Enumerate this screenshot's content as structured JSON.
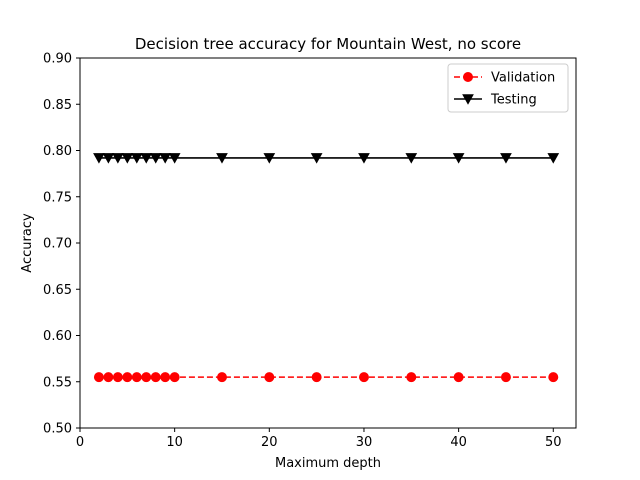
{
  "chart_data": {
    "type": "line",
    "title": "Decision tree accuracy for Mountain West, no score",
    "xlabel": "Maximum depth",
    "ylabel": "Accuracy",
    "xlim": [
      0,
      52.4
    ],
    "ylim": [
      0.5,
      0.9
    ],
    "xticks": [
      0,
      10,
      20,
      30,
      40,
      50
    ],
    "yticks": [
      0.5,
      0.55,
      0.6,
      0.65,
      0.7,
      0.75,
      0.8,
      0.85,
      0.9
    ],
    "x": [
      2,
      3,
      4,
      5,
      6,
      7,
      8,
      9,
      10,
      15,
      20,
      25,
      30,
      35,
      40,
      45,
      50
    ],
    "series": [
      {
        "name": "Validation",
        "color": "#ff0000",
        "linestyle": "dashed",
        "marker": "circle",
        "values": [
          0.555,
          0.555,
          0.555,
          0.555,
          0.555,
          0.555,
          0.555,
          0.555,
          0.555,
          0.555,
          0.555,
          0.555,
          0.555,
          0.555,
          0.555,
          0.555,
          0.555
        ]
      },
      {
        "name": "Testing",
        "color": "#000000",
        "linestyle": "solid",
        "marker": "triangle-down",
        "values": [
          0.792,
          0.792,
          0.792,
          0.792,
          0.792,
          0.792,
          0.792,
          0.792,
          0.792,
          0.792,
          0.792,
          0.792,
          0.792,
          0.792,
          0.792,
          0.792,
          0.792
        ]
      }
    ],
    "legend_position": "top-right",
    "grid": false
  }
}
